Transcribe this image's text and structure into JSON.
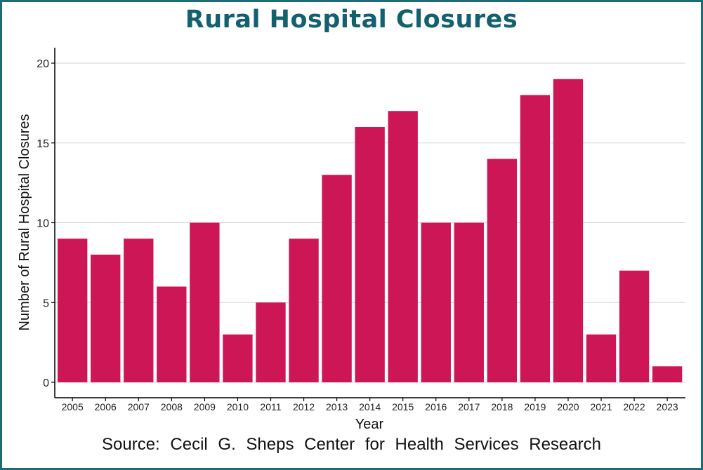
{
  "title": "Rural Hospital Closures",
  "source": "Source:  Cecil G. Sheps Center for Health Services Research",
  "colors": {
    "bar": "#cc1656",
    "title": "#13606e",
    "frame": "#1b6b78",
    "grid": "#d3d3d3"
  },
  "chart_data": {
    "type": "bar",
    "title": "Rural Hospital Closures",
    "xlabel": "Year",
    "ylabel": "Number of Rural Hospital Closures",
    "categories": [
      "2005",
      "2006",
      "2007",
      "2008",
      "2009",
      "2010",
      "2011",
      "2012",
      "2013",
      "2014",
      "2015",
      "2016",
      "2017",
      "2018",
      "2019",
      "2020",
      "2021",
      "2022",
      "2023"
    ],
    "values": [
      9,
      8,
      9,
      6,
      10,
      3,
      5,
      9,
      13,
      16,
      17,
      10,
      10,
      14,
      18,
      19,
      3,
      7,
      1
    ],
    "ylim": [
      0,
      21
    ],
    "yticks": [
      0,
      5,
      10,
      15,
      20
    ],
    "grid": true,
    "legend": "none"
  }
}
